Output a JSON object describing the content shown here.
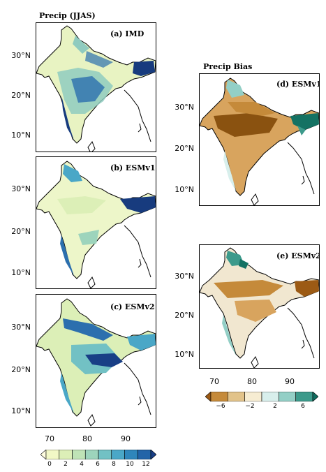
{
  "left_header": "Precip (JJAS)",
  "right_header": "Precip Bias",
  "panels": [
    {
      "id": "a",
      "label": "(a) IMD",
      "field": "precip"
    },
    {
      "id": "b",
      "label": "(b) ESMv1",
      "field": "precip"
    },
    {
      "id": "c",
      "label": "(c) ESMv2",
      "field": "precip"
    },
    {
      "id": "d",
      "label": "(d) ESMv1",
      "field": "bias"
    },
    {
      "id": "e",
      "label": "(e) ESMv2",
      "field": "bias"
    }
  ],
  "axes": {
    "lat_ticks": [
      "30°N",
      "20°N",
      "10°N"
    ],
    "lon_ticks": [
      "70",
      "80",
      "90"
    ]
  },
  "colorbar_precip": {
    "labels": [
      "0",
      "2",
      "4",
      "6",
      "8",
      "10",
      "12"
    ],
    "colors": [
      "#fffde0",
      "#f2f8c6",
      "#dcefb7",
      "#bfe3b6",
      "#9dd4bc",
      "#72c1c4",
      "#4aa7c7",
      "#2f86bb",
      "#2264a8",
      "#183f86"
    ]
  },
  "colorbar_bias": {
    "labels": [
      "−6",
      "−2",
      "2",
      "6"
    ],
    "colors": [
      "#9c5a14",
      "#c58a3a",
      "#e2c38a",
      "#f6ecd2",
      "#d8efec",
      "#93cfc6",
      "#3c9a8b",
      "#0f6b5f"
    ]
  },
  "map_colors": {
    "outside": "#ffffff",
    "coast": "#000000",
    "precip_base": "#e8f3c2",
    "precip_mid": "#8fcbbf",
    "precip_high": "#2c6fae",
    "precip_max": "#173b7e",
    "bias_dry": "#c8903e",
    "bias_very_dry": "#8a5210",
    "bias_neutral": "#f1e7d0",
    "bias_wet": "#8fd0c4",
    "bias_very_wet": "#147263"
  }
}
